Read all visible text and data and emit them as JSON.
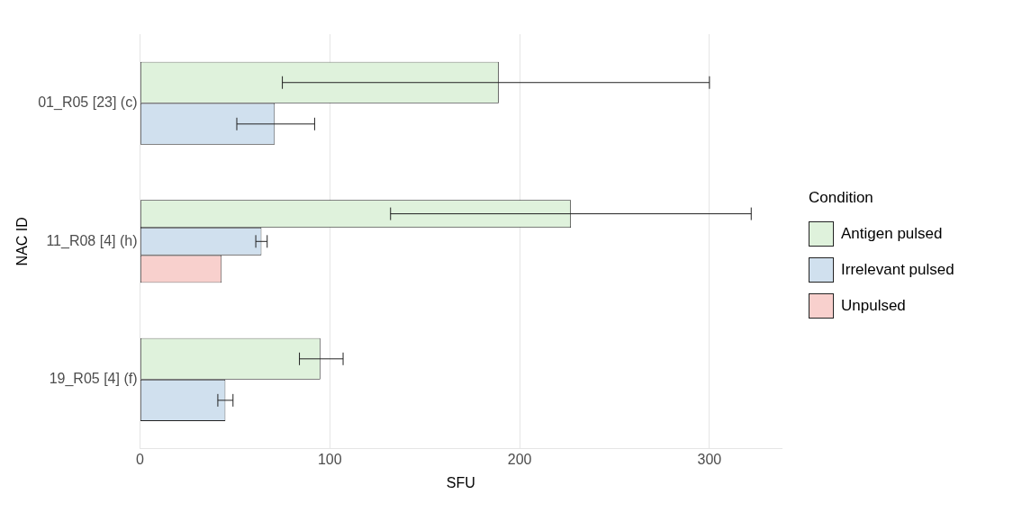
{
  "chart_data": {
    "type": "bar",
    "orientation": "horizontal",
    "xlabel": "SFU",
    "ylabel": "NAC ID",
    "legend_title": "Condition",
    "legend": "right",
    "grid": "x",
    "categories": [
      "01_R05 [23] (c)",
      "11_R08 [4] (h)",
      "19_R05 [4] (f)"
    ],
    "xlim": [
      0,
      338
    ],
    "xticks": [
      0,
      100,
      200,
      300
    ],
    "series": [
      {
        "name": "Antigen pulsed",
        "color": "#dff2dc",
        "values": [
          189,
          227,
          95
        ],
        "errors": [
          [
            75,
            300
          ],
          [
            132,
            322
          ],
          [
            84,
            107
          ]
        ]
      },
      {
        "name": "Irrelevant pulsed",
        "color": "#d0e0ee",
        "values": [
          71,
          64,
          45
        ],
        "errors": [
          [
            51,
            92
          ],
          [
            61,
            67
          ],
          [
            41,
            49
          ]
        ]
      },
      {
        "name": "Unpulsed",
        "color": "#f8d0cd",
        "values": [
          null,
          43,
          null
        ]
      }
    ]
  }
}
